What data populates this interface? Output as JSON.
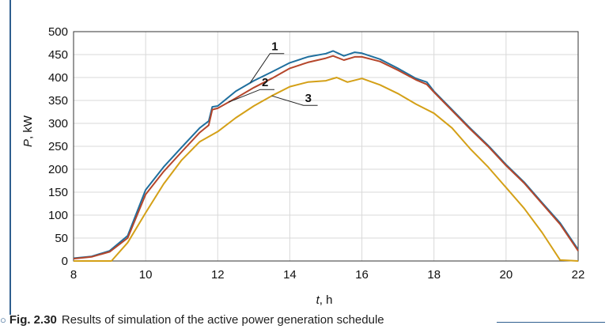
{
  "chart_data": {
    "type": "line",
    "xlabel_var": "t",
    "xlabel_unit": ", h",
    "ylabel_var": "P",
    "ylabel_unit": ", kW",
    "xlim": [
      8,
      22
    ],
    "ylim": [
      0,
      500
    ],
    "xticks": [
      8,
      10,
      12,
      14,
      16,
      18,
      20,
      22
    ],
    "yticks": [
      0,
      50,
      100,
      150,
      200,
      250,
      300,
      350,
      400,
      450,
      500
    ],
    "grid": true,
    "series": [
      {
        "name": "1",
        "color": "#1f6f9e",
        "points": [
          [
            8,
            6
          ],
          [
            8.5,
            10
          ],
          [
            9,
            22
          ],
          [
            9.5,
            55
          ],
          [
            10,
            155
          ],
          [
            10.5,
            205
          ],
          [
            11,
            248
          ],
          [
            11.5,
            290
          ],
          [
            11.75,
            305
          ],
          [
            11.85,
            336
          ],
          [
            12,
            338
          ],
          [
            12.5,
            370
          ],
          [
            13,
            393
          ],
          [
            13.5,
            412
          ],
          [
            14,
            432
          ],
          [
            14.5,
            445
          ],
          [
            15,
            452
          ],
          [
            15.2,
            458
          ],
          [
            15.5,
            447
          ],
          [
            15.8,
            455
          ],
          [
            16,
            453
          ],
          [
            16.5,
            440
          ],
          [
            17,
            420
          ],
          [
            17.5,
            398
          ],
          [
            17.8,
            390
          ],
          [
            18,
            370
          ],
          [
            18.5,
            330
          ],
          [
            19,
            290
          ],
          [
            19.5,
            252
          ],
          [
            20,
            210
          ],
          [
            20.5,
            172
          ],
          [
            21,
            127
          ],
          [
            21.5,
            83
          ],
          [
            22,
            25
          ]
        ]
      },
      {
        "name": "2",
        "color": "#b5462b",
        "points": [
          [
            8,
            5
          ],
          [
            8.5,
            9
          ],
          [
            9,
            20
          ],
          [
            9.5,
            50
          ],
          [
            10,
            145
          ],
          [
            10.5,
            195
          ],
          [
            11,
            238
          ],
          [
            11.5,
            280
          ],
          [
            11.75,
            296
          ],
          [
            11.85,
            330
          ],
          [
            12,
            333
          ],
          [
            12.5,
            355
          ],
          [
            13,
            378
          ],
          [
            13.5,
            398
          ],
          [
            14,
            420
          ],
          [
            14.5,
            433
          ],
          [
            15,
            442
          ],
          [
            15.2,
            447
          ],
          [
            15.5,
            438
          ],
          [
            15.8,
            445
          ],
          [
            16,
            445
          ],
          [
            16.5,
            435
          ],
          [
            17,
            416
          ],
          [
            17.5,
            395
          ],
          [
            17.8,
            385
          ],
          [
            18,
            368
          ],
          [
            18.5,
            328
          ],
          [
            19,
            288
          ],
          [
            19.5,
            250
          ],
          [
            20,
            208
          ],
          [
            20.5,
            170
          ],
          [
            21,
            125
          ],
          [
            21.5,
            80
          ],
          [
            22,
            22
          ]
        ]
      },
      {
        "name": "3",
        "color": "#d4a017",
        "points": [
          [
            8,
            0
          ],
          [
            9.05,
            0
          ],
          [
            9.5,
            40
          ],
          [
            10,
            105
          ],
          [
            10.5,
            168
          ],
          [
            11,
            220
          ],
          [
            11.5,
            260
          ],
          [
            12,
            282
          ],
          [
            12.5,
            312
          ],
          [
            13,
            338
          ],
          [
            13.5,
            360
          ],
          [
            14,
            380
          ],
          [
            14.5,
            390
          ],
          [
            15,
            393
          ],
          [
            15.3,
            400
          ],
          [
            15.6,
            390
          ],
          [
            16,
            398
          ],
          [
            16.5,
            384
          ],
          [
            17,
            365
          ],
          [
            17.5,
            342
          ],
          [
            18,
            322
          ],
          [
            18.5,
            290
          ],
          [
            19,
            245
          ],
          [
            19.5,
            205
          ],
          [
            20,
            160
          ],
          [
            20.5,
            115
          ],
          [
            21,
            62
          ],
          [
            21.5,
            2
          ],
          [
            22,
            0
          ]
        ]
      }
    ]
  },
  "caption": {
    "figure_label": "Fig. 2.30",
    "text": "Results of simulation of the active power generation schedule"
  }
}
